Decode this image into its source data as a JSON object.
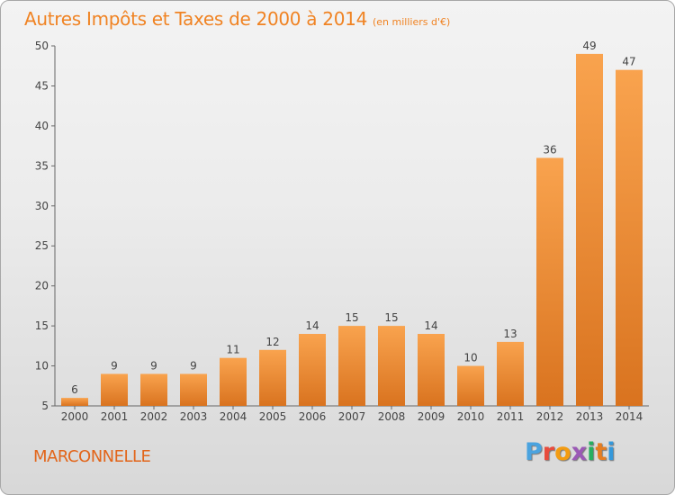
{
  "header": {
    "title": "Autres Impôts et Taxes de 2000 à 2014",
    "subtitle": "(en milliers d'€)"
  },
  "footer": {
    "commune": "MARCONNELLE",
    "brand_letters": [
      "P",
      "r",
      "o",
      "x",
      "i",
      "t",
      "i"
    ]
  },
  "colors": {
    "title": "#f08323",
    "bar_light": "#f9a34e",
    "bar_dark": "#d9731f",
    "brand": [
      "#4aa3df",
      "#e84c3d",
      "#f39c12",
      "#9b59b6",
      "#27ae60",
      "#e67e22",
      "#3498db"
    ]
  },
  "chart_data": {
    "type": "bar",
    "title": "Autres Impôts et Taxes de 2000 à 2014",
    "subtitle": "(en milliers d'€)",
    "categories": [
      "2000",
      "2001",
      "2002",
      "2003",
      "2004",
      "2005",
      "2006",
      "2007",
      "2008",
      "2009",
      "2010",
      "2011",
      "2012",
      "2013",
      "2014"
    ],
    "values": [
      6,
      9,
      9,
      9,
      11,
      12,
      14,
      15,
      15,
      14,
      10,
      13,
      36,
      49,
      47
    ],
    "ylim": [
      5,
      50
    ],
    "yticks": [
      5,
      10,
      15,
      20,
      25,
      30,
      35,
      40,
      45,
      50
    ],
    "grid": false,
    "xlabel": "",
    "ylabel": ""
  }
}
